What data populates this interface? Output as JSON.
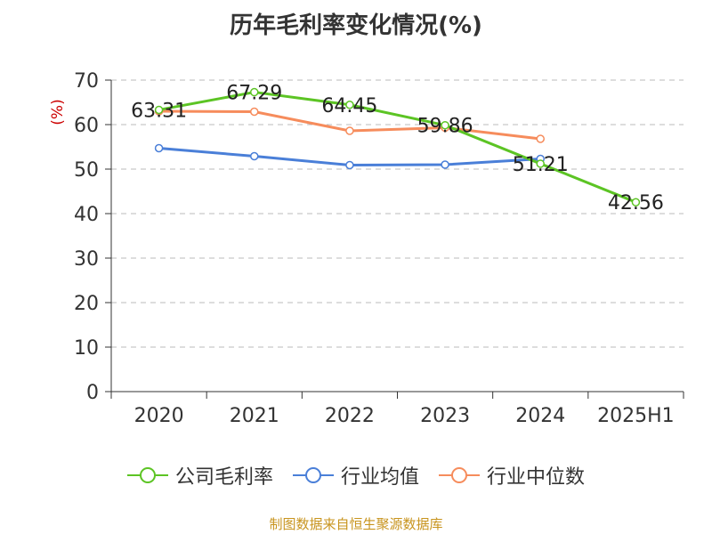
{
  "title": "历年毛利率变化情况(%)",
  "source": "制图数据来自恒生聚源数据库",
  "colors": {
    "source_text": "#c8941e",
    "ylabel": "#cc0000"
  },
  "chart_data": {
    "type": "line",
    "title": "历年毛利率变化情况(%)",
    "ylabel": "(%)",
    "ylim": [
      0,
      70
    ],
    "yticks": [
      "0",
      "10",
      "20",
      "30",
      "40",
      "50",
      "60",
      "70"
    ],
    "ytick_values": [
      0,
      10,
      20,
      30,
      40,
      50,
      60,
      70
    ],
    "categories": [
      "2020",
      "2021",
      "2022",
      "2023",
      "2024",
      "2025H1"
    ],
    "grid": true,
    "legend_position": "bottom",
    "series": [
      {
        "name": "公司毛利率",
        "color": "#5cc424",
        "values": [
          63.31,
          67.29,
          64.45,
          59.86,
          51.21,
          42.56
        ],
        "labels": [
          "63.31",
          "67.29",
          "64.45",
          "59.86",
          "51.21",
          "42.56"
        ]
      },
      {
        "name": "行业均值",
        "color": "#4a7fd8",
        "values": [
          54.7,
          52.9,
          50.9,
          51.0,
          52.3,
          null
        ]
      },
      {
        "name": "行业中位数",
        "color": "#f68c5c",
        "values": [
          63.0,
          62.9,
          58.6,
          59.3,
          56.8,
          null
        ]
      }
    ]
  }
}
